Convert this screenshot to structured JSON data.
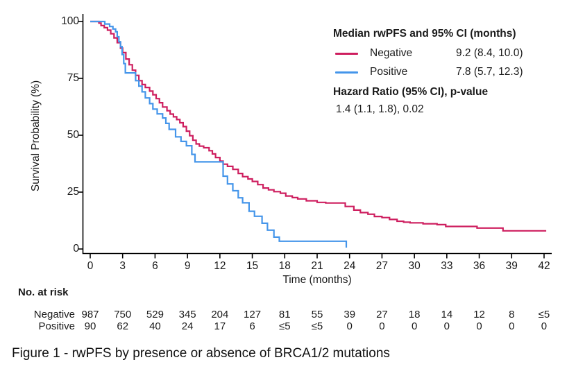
{
  "figure": {
    "caption": "Figure 1 - rwPFS by presence or absence of BRCA1/2 mutations"
  },
  "legend": {
    "title": "Median rwPFS and 95% CI (months)",
    "entries": [
      {
        "label": "Negative",
        "value": "9.2 (8.4, 10.0)",
        "color": "#CE1E5F"
      },
      {
        "label": "Positive",
        "value": "7.8 (5.7, 12.3)",
        "color": "#4495EA"
      }
    ],
    "hr_title": "Hazard Ratio (95% CI), p-value",
    "hr_value": "1.4 (1.1, 1.8), 0.02"
  },
  "chart_data": {
    "type": "line",
    "subtype": "kaplan-meier-step",
    "title": "",
    "xlabel": "Time (months)",
    "ylabel": "Survival Probability (%)",
    "xlim": [
      0,
      42
    ],
    "ylim": [
      0,
      100
    ],
    "x_ticks": [
      0,
      3,
      6,
      9,
      12,
      15,
      18,
      21,
      24,
      27,
      30,
      33,
      36,
      39,
      42
    ],
    "y_ticks": [
      0,
      25,
      50,
      75,
      100
    ],
    "grid": false,
    "legend_position": "top-right",
    "axis_color": "#000000",
    "series": [
      {
        "name": "Negative",
        "color": "#CE1E5F",
        "median_months": 9.2,
        "median_ci": "8.4, 10.0",
        "points": [
          [
            0,
            100
          ],
          [
            0.8,
            99.3
          ],
          [
            1.0,
            98.2
          ],
          [
            1.3,
            97.3
          ],
          [
            1.6,
            96.2
          ],
          [
            1.9,
            94.6
          ],
          [
            2.2,
            92.8
          ],
          [
            2.5,
            90.7
          ],
          [
            2.8,
            88.3
          ],
          [
            3.0,
            86.3
          ],
          [
            3.3,
            83.5
          ],
          [
            3.6,
            81.0
          ],
          [
            3.9,
            78.6
          ],
          [
            4.2,
            76.3
          ],
          [
            4.5,
            74.0
          ],
          [
            4.8,
            72.3
          ],
          [
            5.1,
            71.0
          ],
          [
            5.5,
            69.4
          ],
          [
            5.8,
            67.8
          ],
          [
            6.1,
            66.1
          ],
          [
            6.4,
            64.3
          ],
          [
            6.7,
            62.4
          ],
          [
            7.1,
            60.8
          ],
          [
            7.4,
            59.3
          ],
          [
            7.7,
            58.1
          ],
          [
            8.0,
            56.9
          ],
          [
            8.3,
            55.5
          ],
          [
            8.6,
            53.8
          ],
          [
            8.9,
            51.8
          ],
          [
            9.2,
            49.8
          ],
          [
            9.5,
            47.8
          ],
          [
            9.8,
            46.2
          ],
          [
            10.1,
            45.2
          ],
          [
            10.5,
            44.5
          ],
          [
            11.0,
            43.2
          ],
          [
            11.3,
            41.8
          ],
          [
            11.6,
            40.2
          ],
          [
            12.0,
            38.6
          ],
          [
            12.3,
            37.3
          ],
          [
            12.7,
            36.3
          ],
          [
            13.2,
            35.0
          ],
          [
            13.7,
            33.2
          ],
          [
            14.1,
            31.8
          ],
          [
            14.6,
            30.8
          ],
          [
            15.0,
            29.7
          ],
          [
            15.5,
            28.3
          ],
          [
            16.0,
            26.8
          ],
          [
            16.5,
            26.0
          ],
          [
            17.0,
            25.2
          ],
          [
            17.6,
            24.5
          ],
          [
            18.1,
            23.3
          ],
          [
            18.7,
            22.6
          ],
          [
            19.2,
            22.0
          ],
          [
            20.0,
            21.2
          ],
          [
            21.0,
            20.5
          ],
          [
            21.8,
            20.2
          ],
          [
            23.6,
            18.7
          ],
          [
            24.4,
            17.1
          ],
          [
            25.0,
            16.0
          ],
          [
            25.7,
            15.3
          ],
          [
            26.3,
            14.3
          ],
          [
            27.0,
            13.8
          ],
          [
            27.7,
            13.0
          ],
          [
            28.4,
            12.2
          ],
          [
            29.0,
            11.8
          ],
          [
            29.6,
            11.5
          ],
          [
            30.8,
            11.1
          ],
          [
            32.1,
            10.7
          ],
          [
            32.9,
            9.9
          ],
          [
            35.8,
            9.2
          ],
          [
            38.2,
            8.0
          ],
          [
            42.2,
            8.0
          ]
        ]
      },
      {
        "name": "Positive",
        "color": "#4495EA",
        "median_months": 7.8,
        "median_ci": "5.7, 12.3",
        "points": [
          [
            0,
            100
          ],
          [
            1.35,
            98.9
          ],
          [
            1.8,
            97.8
          ],
          [
            2.1,
            96.7
          ],
          [
            2.35,
            95.5
          ],
          [
            2.5,
            93.3
          ],
          [
            2.65,
            91.1
          ],
          [
            2.8,
            88.9
          ],
          [
            2.95,
            85.5
          ],
          [
            3.1,
            81.5
          ],
          [
            3.25,
            77.4
          ],
          [
            4.2,
            74.0
          ],
          [
            4.5,
            71.6
          ],
          [
            4.8,
            69.1
          ],
          [
            5.1,
            66.4
          ],
          [
            5.5,
            63.9
          ],
          [
            5.8,
            61.5
          ],
          [
            6.2,
            59.4
          ],
          [
            6.7,
            57.6
          ],
          [
            7.0,
            55.2
          ],
          [
            7.3,
            52.6
          ],
          [
            7.9,
            49.3
          ],
          [
            8.4,
            47.3
          ],
          [
            8.9,
            45.4
          ],
          [
            9.4,
            41.6
          ],
          [
            9.7,
            38.3
          ],
          [
            12.3,
            32.0
          ],
          [
            12.7,
            28.6
          ],
          [
            13.2,
            25.6
          ],
          [
            13.7,
            22.5
          ],
          [
            14.1,
            20.3
          ],
          [
            14.7,
            16.6
          ],
          [
            15.2,
            14.4
          ],
          [
            15.9,
            11.3
          ],
          [
            16.4,
            8.3
          ],
          [
            17.0,
            5.2
          ],
          [
            17.5,
            3.4
          ],
          [
            23.7,
            0.6
          ]
        ]
      }
    ],
    "hazard_ratio": "1.4 (1.1, 1.8)",
    "p_value": "0.02",
    "risk_table": {
      "title": "No. at risk",
      "times": [
        0,
        3,
        6,
        9,
        12,
        15,
        18,
        21,
        24,
        27,
        30,
        33,
        36,
        39,
        42
      ],
      "rows": [
        {
          "name": "Negative",
          "values": [
            "987",
            "750",
            "529",
            "345",
            "204",
            "127",
            "81",
            "55",
            "39",
            "27",
            "18",
            "14",
            "12",
            "8",
            "≤5"
          ]
        },
        {
          "name": "Positive",
          "values": [
            "90",
            "62",
            "40",
            "24",
            "17",
            "6",
            "≤5",
            "≤5",
            "0",
            "0",
            "0",
            "0",
            "0",
            "0",
            "0"
          ]
        }
      ]
    }
  }
}
